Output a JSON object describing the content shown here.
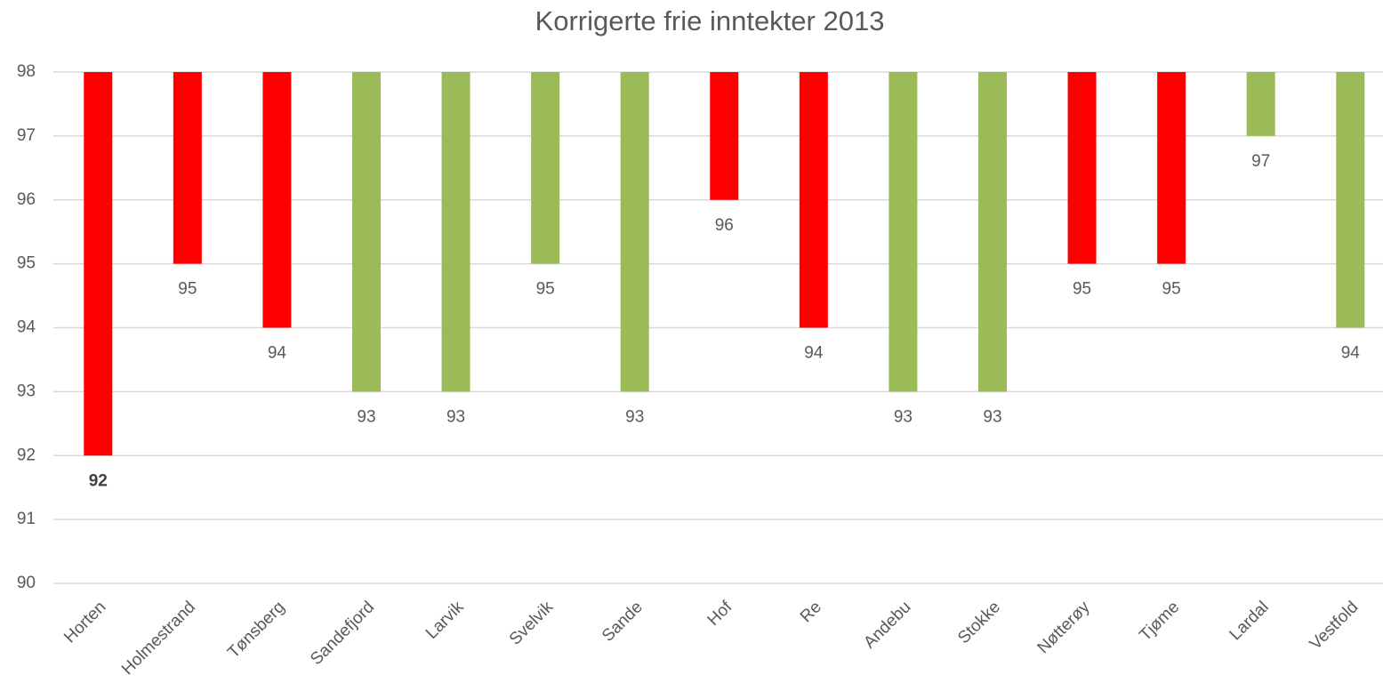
{
  "chart_data": {
    "type": "bar",
    "title": "Korrigerte frie inntekter 2013",
    "categories": [
      "Horten",
      "Holmestrand",
      "Tønsberg",
      "Sandefjord",
      "Larvik",
      "Svelvik",
      "Sande",
      "Hof",
      "Re",
      "Andebu",
      "Stokke",
      "Nøtterøy",
      "Tjøme",
      "Lardal",
      "Vestfold"
    ],
    "values": [
      92,
      95,
      94,
      93,
      93,
      95,
      93,
      96,
      94,
      93,
      93,
      95,
      95,
      97,
      94
    ],
    "colors": [
      "#ff0000",
      "#ff0000",
      "#ff0000",
      "#9bbb59",
      "#9bbb59",
      "#9bbb59",
      "#9bbb59",
      "#ff0000",
      "#ff0000",
      "#9bbb59",
      "#9bbb59",
      "#ff0000",
      "#ff0000",
      "#9bbb59",
      "#9bbb59"
    ],
    "ylim": [
      90,
      98
    ],
    "yticks": [
      90,
      91,
      92,
      93,
      94,
      95,
      96,
      97,
      98
    ],
    "grid": true
  }
}
